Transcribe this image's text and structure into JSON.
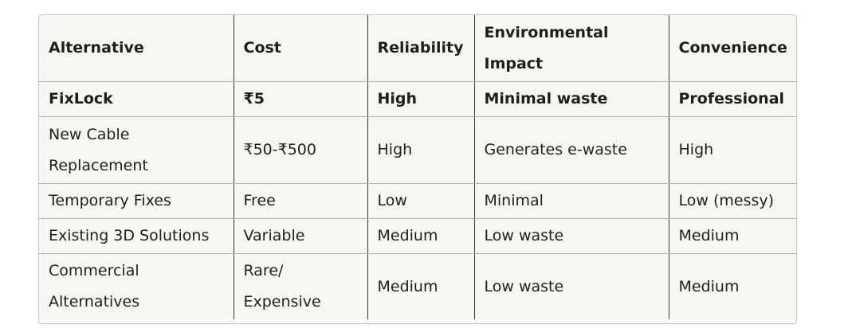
{
  "table": {
    "headers": [
      "Alternative",
      "Cost",
      "Reliability",
      "Environmental Impact",
      "Convenience"
    ],
    "rows": [
      [
        "FixLock",
        "₹5",
        "High",
        "Minimal waste",
        "Professional"
      ],
      [
        "New Cable Replacement",
        "₹50-₹500",
        "High",
        "Generates e-waste",
        "High"
      ],
      [
        "Temporary Fixes",
        "Free",
        "Low",
        "Minimal",
        "Low (messy)"
      ],
      [
        "Existing 3D Solutions",
        "Variable",
        "Medium",
        "Low waste",
        "Medium"
      ],
      [
        "Commercial Alternatives",
        "Rare/ Expensive",
        "Medium",
        "Low waste",
        "Medium"
      ]
    ]
  }
}
